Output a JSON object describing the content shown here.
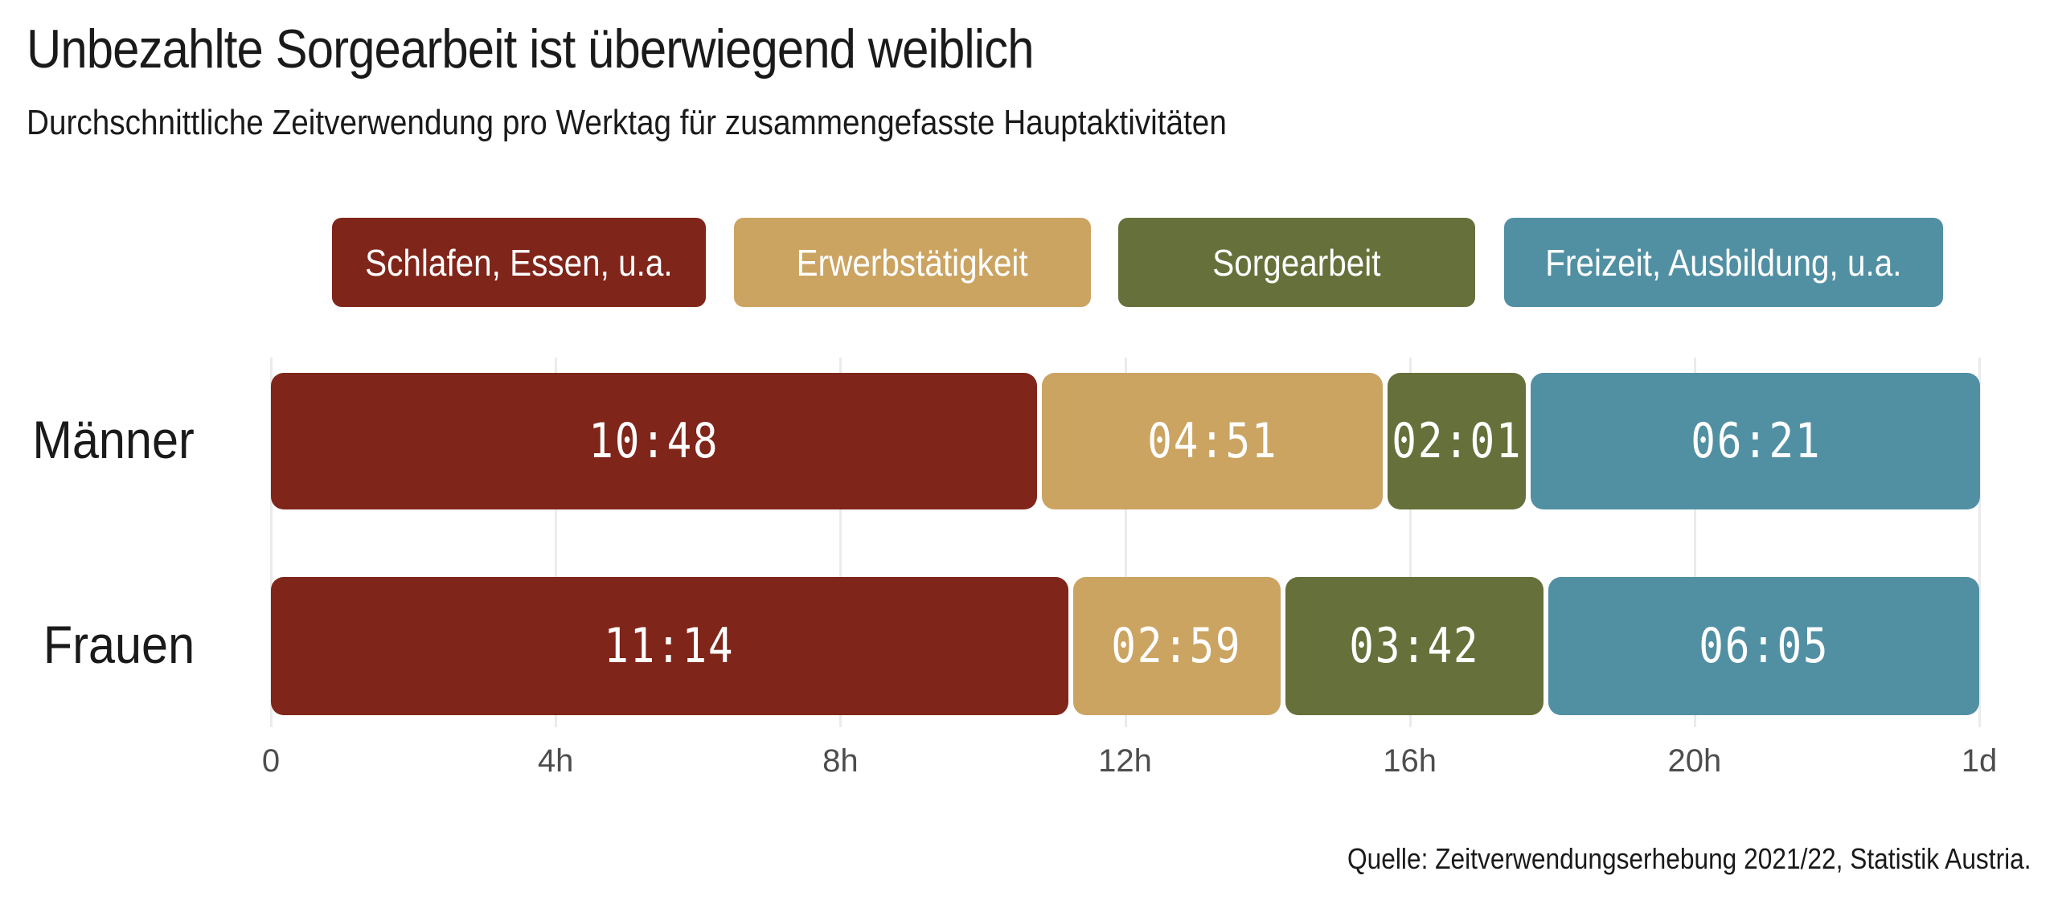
{
  "chart_data": {
    "type": "bar",
    "orientation": "horizontal",
    "stacked": true,
    "title": "Unbezahlte Sorgearbeit ist überwiegend weiblich",
    "subtitle": "Durchschnittliche Zeitverwendung pro Werktag für zusammengefasste Hauptaktivitäten",
    "source": "Quelle: Zeitverwendungserhebung 2021/22, Statistik Austria.",
    "categories": [
      "Männer",
      "Frauen"
    ],
    "series": [
      {
        "name": "Schlafen, Essen, u.a.",
        "color": "#80251a",
        "values": [
          648,
          674
        ],
        "labels": [
          "10:48",
          "11:14"
        ]
      },
      {
        "name": "Erwerbstätigkeit",
        "color": "#cba462",
        "values": [
          291,
          179
        ],
        "labels": [
          "04:51",
          "02:59"
        ]
      },
      {
        "name": "Sorgearbeit",
        "color": "#66703a",
        "values": [
          121,
          222
        ],
        "labels": [
          "02:01",
          "03:42"
        ]
      },
      {
        "name": "Freizeit, Ausbildung, u.a.",
        "color": "#5190a3",
        "values": [
          381,
          365
        ],
        "labels": [
          "06:21",
          "06:05"
        ]
      }
    ],
    "value_unit": "minutes",
    "xlim": [
      0,
      1440
    ],
    "xticks": [
      0,
      240,
      480,
      720,
      960,
      1200,
      1440
    ],
    "xtick_labels": [
      "0",
      "4h",
      "8h",
      "12h",
      "16h",
      "20h",
      "1d"
    ],
    "grid": "vertical",
    "legend_placement": "top"
  }
}
